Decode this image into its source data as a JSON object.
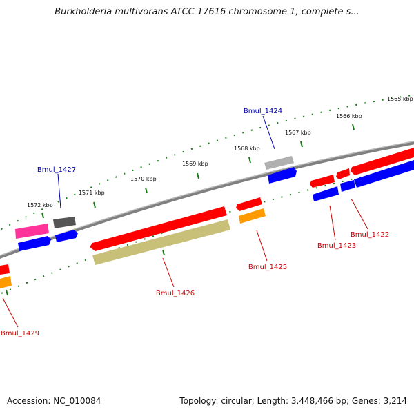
{
  "title": "Burkholderia multivorans ATCC 17616 chromosome 1, complete s...",
  "footer": {
    "accession": "Accession: NC_010084",
    "summary": "Topology: circular; Length: 3,448,466 bp; Genes: 3,214"
  },
  "ticks": [
    {
      "label": "1565 kbp"
    },
    {
      "label": "1566 kbp"
    },
    {
      "label": "1567 kbp"
    },
    {
      "label": "1568 kbp"
    },
    {
      "label": "1569 kbp"
    },
    {
      "label": "1570 kbp"
    },
    {
      "label": "1571 kbp"
    },
    {
      "label": "1572 kbp"
    }
  ],
  "gene_labels": [
    {
      "name": "Bmul_1424",
      "color": "#0000aa"
    },
    {
      "name": "Bmul_1427",
      "color": "#0000aa"
    },
    {
      "name": "Bmul_1422",
      "color": "#cc0000"
    },
    {
      "name": "Bmul_1423",
      "color": "#cc0000"
    },
    {
      "name": "Bmul_1425",
      "color": "#cc0000"
    },
    {
      "name": "Bmul_1426",
      "color": "#cc0000"
    },
    {
      "name": "Bmul_1429",
      "color": "#cc0000"
    }
  ],
  "colors": {
    "backbone": "#808080",
    "tick": "#1a7a1a",
    "red": "#ff0000",
    "blue": "#0000ff",
    "orange": "#ff9900",
    "olive": "#c8c078",
    "pink": "#ff3399",
    "dark_gray": "#555555",
    "light_gray": "#b0b0b0"
  }
}
